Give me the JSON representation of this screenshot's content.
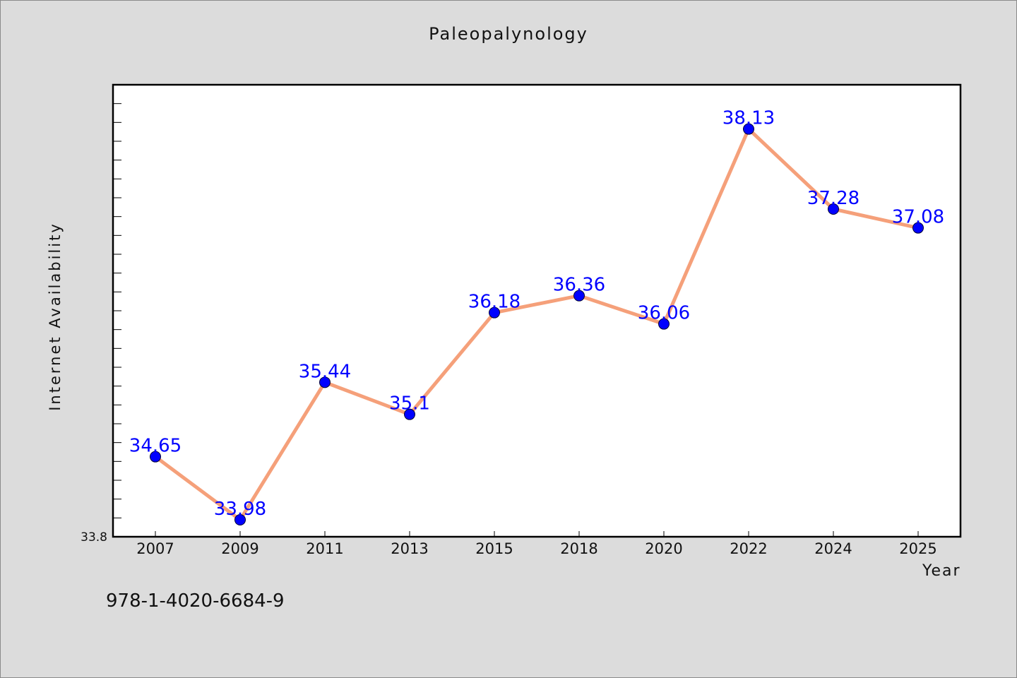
{
  "chart_data": {
    "type": "line",
    "title": "Paleopalynology",
    "xlabel": "Year",
    "ylabel": "Internet Availability",
    "categories": [
      "2007",
      "2009",
      "2011",
      "2013",
      "2015",
      "2018",
      "2020",
      "2022",
      "2024",
      "2025"
    ],
    "series": [
      {
        "values": [
          34.65,
          33.98,
          35.44,
          35.1,
          36.18,
          36.36,
          36.06,
          38.13,
          37.28,
          37.08
        ],
        "data_labels": [
          "34.65",
          "33.98",
          "35.44",
          "35.1",
          "36.18",
          "36.36",
          "36.06",
          "38.13",
          "37.28",
          "37.08"
        ],
        "line_color": "#f5a07a",
        "marker_color": "#0000ff",
        "label_color": "#0000ff"
      }
    ],
    "y_tick_labels": [
      "33.8"
    ],
    "ylim": [
      33.8,
      38.6
    ],
    "grid": false,
    "legend": "none"
  },
  "footnote": "978-1-4020-6684-9"
}
